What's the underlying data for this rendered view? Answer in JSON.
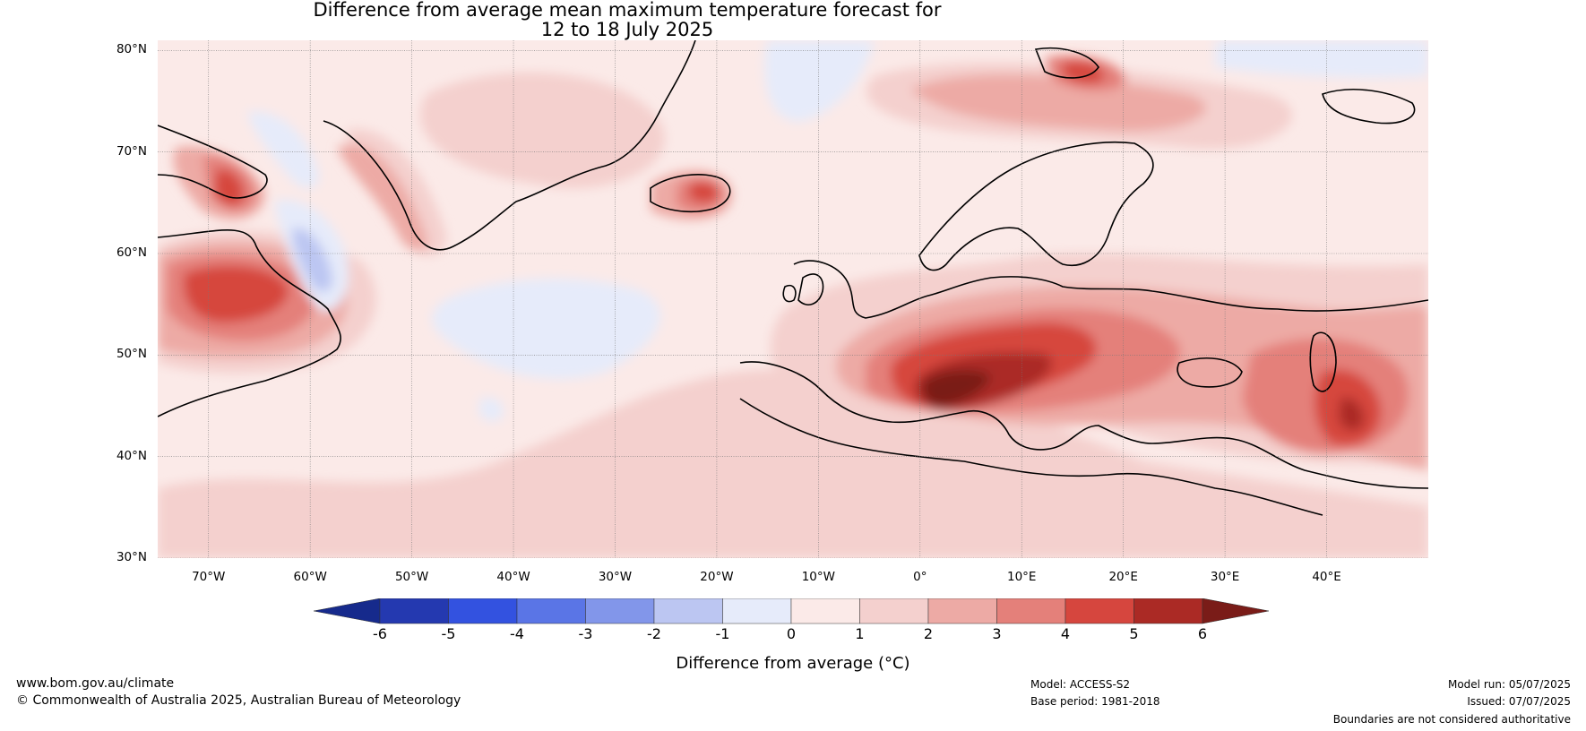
{
  "title_line1": "Difference from average mean maximum temperature forecast for",
  "title_line2": "12 to 18 July 2025",
  "lat_labels": [
    "80°N",
    "70°N",
    "60°N",
    "50°N",
    "40°N",
    "30°N"
  ],
  "lat_values": [
    80,
    70,
    60,
    50,
    40,
    30
  ],
  "lon_labels": [
    "70°W",
    "60°W",
    "50°W",
    "40°W",
    "30°W",
    "20°W",
    "10°W",
    "0°",
    "10°E",
    "20°E",
    "30°E",
    "40°E"
  ],
  "lon_values": [
    -70,
    -60,
    -50,
    -40,
    -30,
    -20,
    -10,
    0,
    10,
    20,
    30,
    40
  ],
  "map_extent": {
    "lon_min": -75,
    "lon_max": 50,
    "lat_min": 30,
    "lat_max": 81
  },
  "colorbar": {
    "ticks": [
      "-6",
      "-5",
      "-4",
      "-3",
      "-2",
      "-1",
      "0",
      "1",
      "2",
      "3",
      "4",
      "5",
      "6"
    ],
    "colors": [
      "#2439b0",
      "#3352e0",
      "#5a75e6",
      "#8296ea",
      "#bcc6f2",
      "#e6ebfa",
      "#fbeae8",
      "#f4d0ce",
      "#edaaa5",
      "#e4807a",
      "#d6463e",
      "#ab2a25"
    ],
    "under_color": "#162a8c",
    "over_color": "#7a1c18",
    "label": "Difference from average (°C)"
  },
  "footer": {
    "website": "www.bom.gov.au/climate",
    "copyright": "© Commonwealth of Australia 2025, Australian Bureau of Meteorology",
    "model": "Model: ACCESS-S2",
    "base_period": "Base period: 1981-2018",
    "model_run": "Model run: 05/07/2025",
    "issued": "Issued: 07/07/2025",
    "disclaimer": "Boundaries are not considered authoritative"
  }
}
